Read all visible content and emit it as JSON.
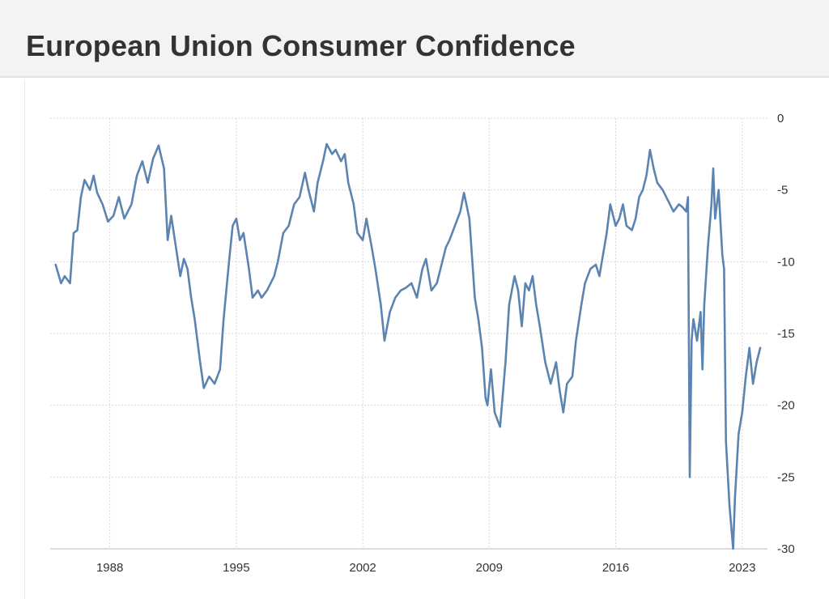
{
  "header": {
    "title": "European Union Consumer Confidence"
  },
  "colors": {
    "line": "#5b84b1",
    "grid": "#d9d9d9",
    "title_bar_bg": "#f3f3f3",
    "text": "#333333"
  },
  "chart_data": {
    "type": "line",
    "title": "European Union Consumer Confidence",
    "xlabel": "",
    "ylabel": "",
    "xlim": [
      1984.7,
      2024.4
    ],
    "ylim": [
      -30,
      0
    ],
    "y_ticks": [
      0,
      -5,
      -10,
      -15,
      -20,
      -25,
      -30
    ],
    "x_ticks": [
      1988,
      1995,
      2002,
      2009,
      2016,
      2023
    ],
    "grid": true,
    "y_axis_side": "right",
    "series": [
      {
        "name": "Consumer Confidence",
        "x": [
          1985.0,
          1985.3,
          1985.5,
          1985.8,
          1986.0,
          1986.2,
          1986.4,
          1986.6,
          1986.9,
          1987.1,
          1987.3,
          1987.6,
          1987.9,
          1988.2,
          1988.5,
          1988.8,
          1989.2,
          1989.5,
          1989.8,
          1990.1,
          1990.4,
          1990.7,
          1991.0,
          1991.2,
          1991.4,
          1991.6,
          1991.9,
          1992.1,
          1992.3,
          1992.5,
          1992.7,
          1993.0,
          1993.2,
          1993.5,
          1993.8,
          1994.1,
          1994.3,
          1994.6,
          1994.8,
          1995.0,
          1995.2,
          1995.4,
          1995.7,
          1995.9,
          1996.2,
          1996.4,
          1996.7,
          1996.9,
          1997.1,
          1997.3,
          1997.6,
          1997.9,
          1998.2,
          1998.5,
          1998.8,
          1999.0,
          1999.3,
          1999.5,
          1999.8,
          2000.0,
          2000.3,
          2000.5,
          2000.8,
          2001.0,
          2001.2,
          2001.5,
          2001.7,
          2002.0,
          2002.2,
          2002.5,
          2002.7,
          2003.0,
          2003.2,
          2003.5,
          2003.8,
          2004.1,
          2004.4,
          2004.7,
          2005.0,
          2005.3,
          2005.5,
          2005.8,
          2006.1,
          2006.3,
          2006.6,
          2006.8,
          2007.1,
          2007.4,
          2007.6,
          2007.9,
          2008.2,
          2008.4,
          2008.6,
          2008.8,
          2008.9,
          2009.1,
          2009.3,
          2009.6,
          2009.9,
          2010.1,
          2010.4,
          2010.6,
          2010.8,
          2011.0,
          2011.2,
          2011.4,
          2011.6,
          2011.8,
          2012.1,
          2012.4,
          2012.7,
          2012.9,
          2013.1,
          2013.3,
          2013.6,
          2013.8,
          2014.1,
          2014.3,
          2014.6,
          2014.9,
          2015.1,
          2015.3,
          2015.5,
          2015.7,
          2016.0,
          2016.2,
          2016.4,
          2016.6,
          2016.9,
          2017.1,
          2017.3,
          2017.5,
          2017.7,
          2017.9,
          2018.1,
          2018.3,
          2018.6,
          2018.8,
          2019.0,
          2019.2,
          2019.5,
          2019.7,
          2019.9,
          2020.0,
          2020.1,
          2020.2,
          2020.3,
          2020.5,
          2020.7,
          2020.8,
          2020.9,
          2021.1,
          2021.3,
          2021.4,
          2021.5,
          2021.7,
          2021.9,
          2022.0,
          2022.1,
          2022.3,
          2022.5,
          2022.6,
          2022.8,
          2023.0,
          2023.2,
          2023.4,
          2023.6,
          2023.8,
          2024.0
        ],
        "values": [
          -10.2,
          -11.5,
          -11.0,
          -11.5,
          -8.0,
          -7.8,
          -5.5,
          -4.3,
          -5.0,
          -4.0,
          -5.2,
          -6.0,
          -7.2,
          -6.8,
          -5.5,
          -7.0,
          -6.0,
          -4.0,
          -3.0,
          -4.5,
          -2.8,
          -1.9,
          -3.5,
          -8.5,
          -6.8,
          -8.5,
          -11.0,
          -9.8,
          -10.5,
          -12.5,
          -14.0,
          -17.0,
          -18.8,
          -18.0,
          -18.5,
          -17.5,
          -14.0,
          -10.0,
          -7.5,
          -7.0,
          -8.5,
          -8.0,
          -10.5,
          -12.5,
          -12.0,
          -12.5,
          -12.0,
          -11.5,
          -11.0,
          -10.0,
          -8.0,
          -7.5,
          -6.0,
          -5.5,
          -3.8,
          -5.0,
          -6.5,
          -4.5,
          -3.0,
          -1.8,
          -2.5,
          -2.2,
          -3.0,
          -2.5,
          -4.5,
          -6.0,
          -8.0,
          -8.5,
          -7.0,
          -9.0,
          -10.5,
          -13.0,
          -15.5,
          -13.5,
          -12.5,
          -12.0,
          -11.8,
          -11.5,
          -12.5,
          -10.5,
          -9.8,
          -12.0,
          -11.5,
          -10.5,
          -9.0,
          -8.5,
          -7.5,
          -6.5,
          -5.2,
          -7.0,
          -12.5,
          -14.0,
          -16.0,
          -19.5,
          -20.0,
          -17.5,
          -20.5,
          -21.5,
          -17.0,
          -13.0,
          -11.0,
          -12.0,
          -14.5,
          -11.5,
          -12.0,
          -11.0,
          -13.0,
          -14.5,
          -17.0,
          -18.5,
          -17.0,
          -19.0,
          -20.5,
          -18.5,
          -18.0,
          -15.5,
          -13.0,
          -11.5,
          -10.5,
          -10.2,
          -11.0,
          -9.5,
          -8.0,
          -6.0,
          -7.5,
          -7.0,
          -6.0,
          -7.5,
          -7.8,
          -7.0,
          -5.5,
          -5.0,
          -4.0,
          -2.2,
          -3.5,
          -4.5,
          -5.0,
          -5.5,
          -6.0,
          -6.5,
          -6.0,
          -6.2,
          -6.5,
          -5.5,
          -25.0,
          -15.5,
          -14.0,
          -15.5,
          -13.5,
          -17.5,
          -13.0,
          -9.0,
          -6.0,
          -3.5,
          -7.0,
          -5.0,
          -9.5,
          -10.5,
          -22.5,
          -27.0,
          -30.0,
          -26.5,
          -22.0,
          -20.5,
          -18.0,
          -16.0,
          -18.5,
          -17.0,
          -16.0
        ]
      }
    ]
  }
}
